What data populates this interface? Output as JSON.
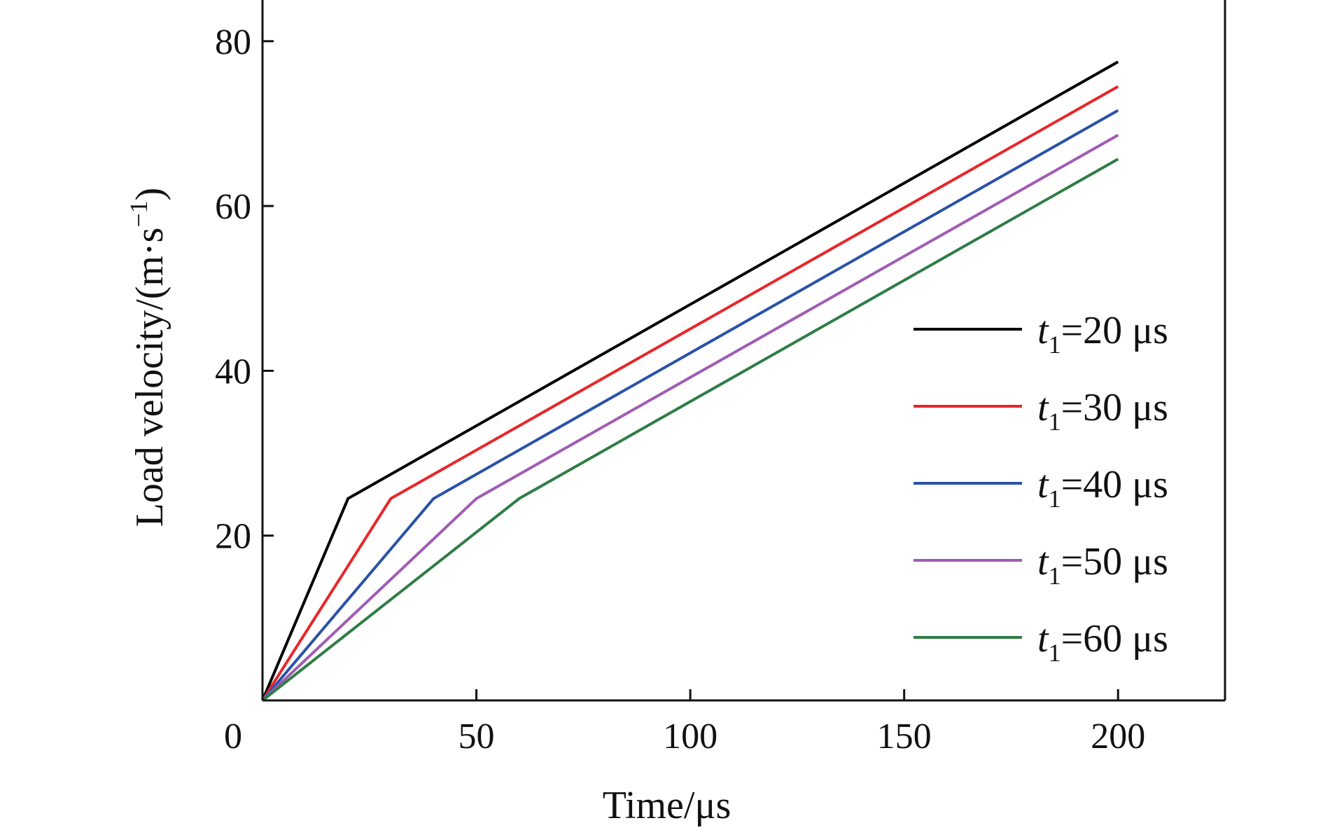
{
  "chart_data": {
    "type": "line",
    "title": "",
    "xlabel": "Time/μs",
    "ylabel_main": "Load velocity/(m·s",
    "ylabel_sup": "−1",
    "ylabel_close": ")",
    "xlim": [
      0,
      225
    ],
    "ylim": [
      0,
      85
    ],
    "x_ticks": [
      0,
      50,
      100,
      150,
      200
    ],
    "x_tick_labels": [
      "0",
      "50",
      "100",
      "150",
      "200"
    ],
    "y_ticks": [
      20,
      40,
      60,
      80
    ],
    "y_tick_labels": [
      "20",
      "40",
      "60",
      "80"
    ],
    "grid": false,
    "legend_position": "center-right",
    "series": [
      {
        "name": "t1=20 μs",
        "legend_var": "t",
        "legend_sub": "1",
        "legend_rest": "=20 μs",
        "color": "#000000",
        "points": [
          [
            0,
            0
          ],
          [
            20,
            24.5
          ],
          [
            200,
            77.5
          ]
        ]
      },
      {
        "name": "t1=30 μs",
        "legend_var": "t",
        "legend_sub": "1",
        "legend_rest": "=30 μs",
        "color": "#e8262a",
        "points": [
          [
            0,
            0
          ],
          [
            30,
            24.5
          ],
          [
            200,
            74.5
          ]
        ]
      },
      {
        "name": "t1=40 μs",
        "legend_var": "t",
        "legend_sub": "1",
        "legend_rest": "=40 μs",
        "color": "#2a52a8",
        "points": [
          [
            0,
            0
          ],
          [
            40,
            24.5
          ],
          [
            200,
            71.6
          ]
        ]
      },
      {
        "name": "t1=50 μs",
        "legend_var": "t",
        "legend_sub": "1",
        "legend_rest": "=50 μs",
        "color": "#a05cb4",
        "points": [
          [
            0,
            0
          ],
          [
            50,
            24.5
          ],
          [
            200,
            68.6
          ]
        ]
      },
      {
        "name": "t1=60 μs",
        "legend_var": "t",
        "legend_sub": "1",
        "legend_rest": "=60 μs",
        "color": "#2f7d45",
        "points": [
          [
            0,
            0
          ],
          [
            60,
            24.5
          ],
          [
            200,
            65.7
          ]
        ]
      }
    ]
  }
}
